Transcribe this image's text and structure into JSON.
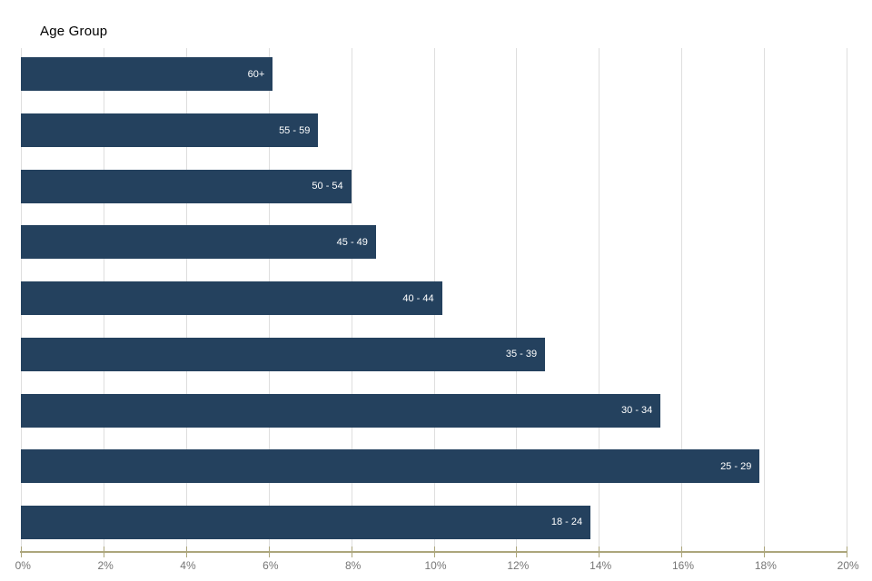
{
  "chart_data": {
    "type": "bar",
    "orientation": "horizontal",
    "title": "Age Group",
    "categories": [
      "60+",
      "55 - 59",
      "50 - 54",
      "45 - 49",
      "40 - 44",
      "35 - 39",
      "30 - 34",
      "25 - 29",
      "18 - 24"
    ],
    "values": [
      6.1,
      7.2,
      8.0,
      8.6,
      10.2,
      12.7,
      15.5,
      17.9,
      13.8
    ],
    "unit": "%",
    "xlim": [
      0,
      20
    ],
    "x_tick_step": 2,
    "x_tick_labels": [
      "0%",
      "2%",
      "4%",
      "6%",
      "8%",
      "10%",
      "12%",
      "14%",
      "16%",
      "18%",
      "20%"
    ],
    "grid": true,
    "legend": "none",
    "colors": {
      "bar": "#24415e",
      "bar_label": "#ffffff",
      "gridline": "#dedede",
      "axis_line": "#aca67c",
      "tick": "#aca67c",
      "tick_label": "#757575",
      "title": "#000000",
      "background": "#ffffff"
    }
  }
}
